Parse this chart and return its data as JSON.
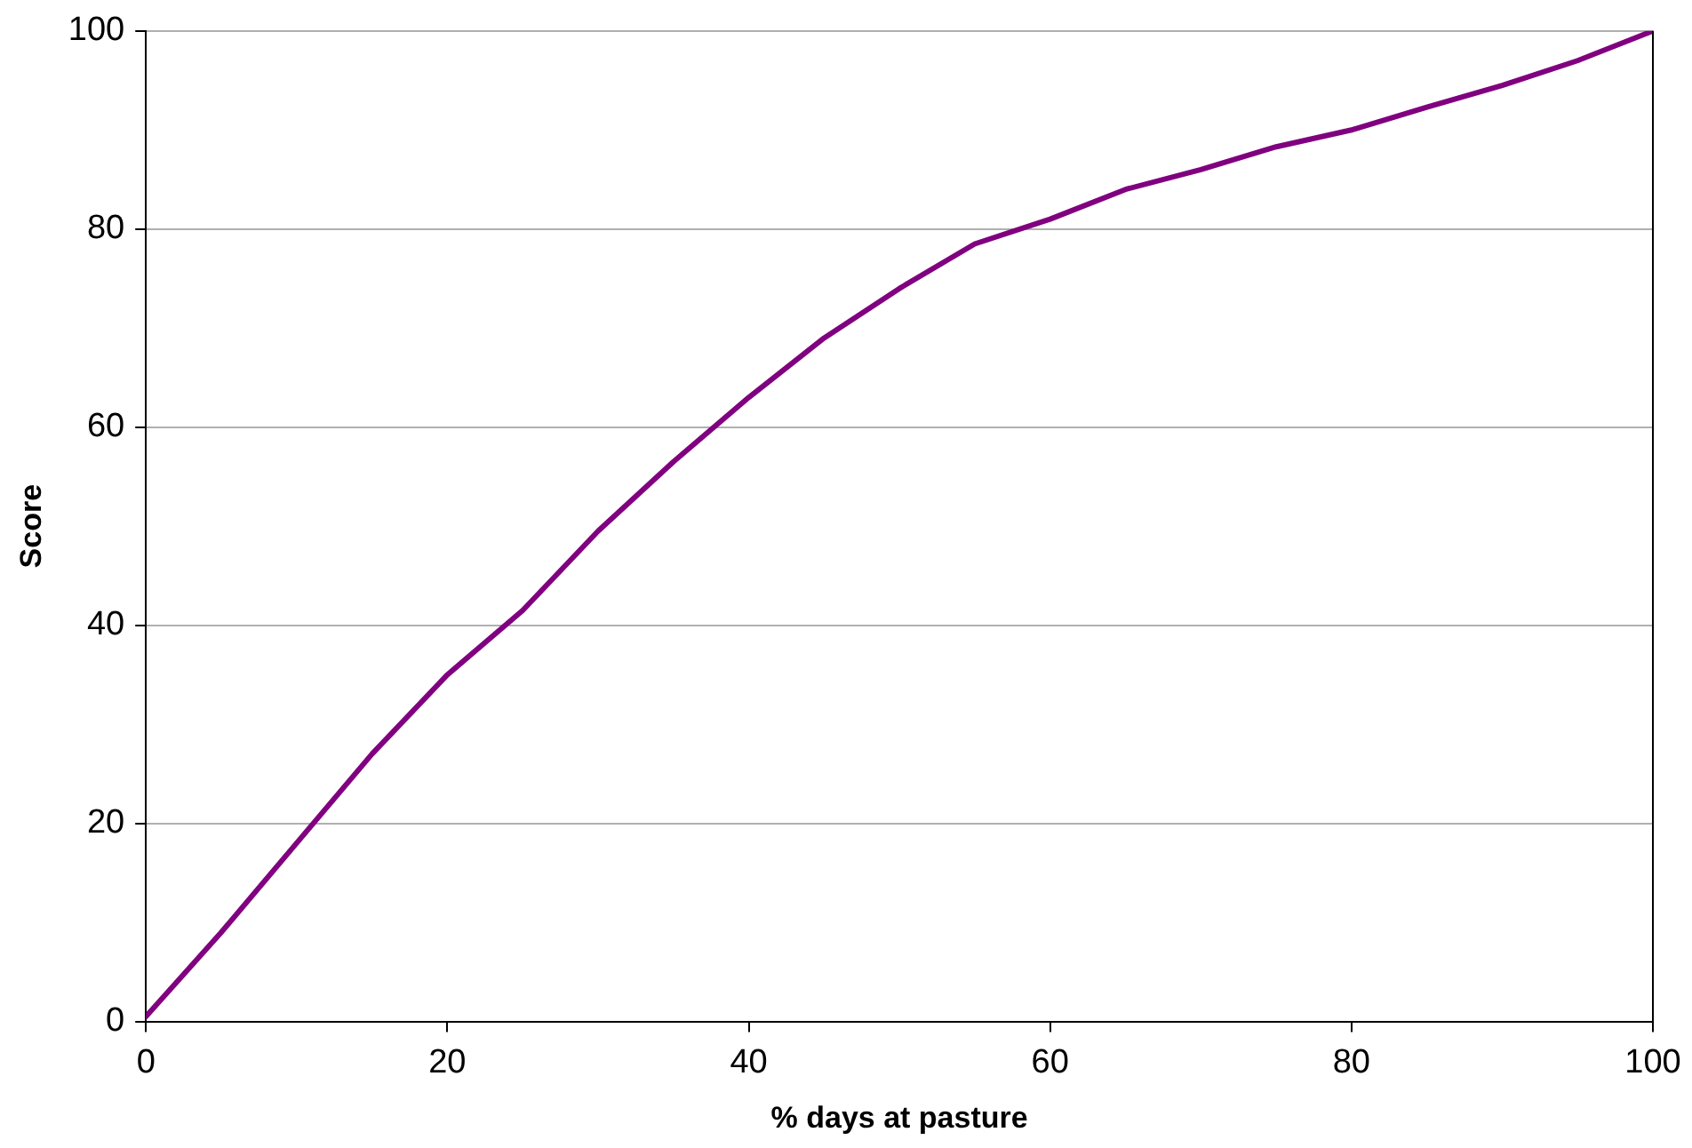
{
  "chart_data": {
    "type": "line",
    "xlabel": "% days at pasture",
    "ylabel": "Score",
    "x": [
      0,
      5,
      10,
      15,
      20,
      25,
      30,
      35,
      40,
      45,
      50,
      55,
      60,
      65,
      70,
      75,
      80,
      85,
      90,
      95,
      100
    ],
    "series": [
      {
        "color": "#800080",
        "values": [
          0.5,
          9,
          18,
          27,
          35,
          41.5,
          49.5,
          56.5,
          63,
          69,
          74,
          78.5,
          81,
          84,
          86,
          88.3,
          90,
          92.3,
          94.5,
          97,
          100
        ]
      }
    ],
    "xlim": [
      0,
      100
    ],
    "xticks": [
      0,
      20,
      40,
      60,
      80,
      100
    ],
    "ylim": [
      0,
      100
    ],
    "yticks": [
      0,
      20,
      40,
      60,
      80,
      100
    ],
    "grid": "y",
    "legend": false,
    "marker": "none",
    "line_style": "solid"
  }
}
